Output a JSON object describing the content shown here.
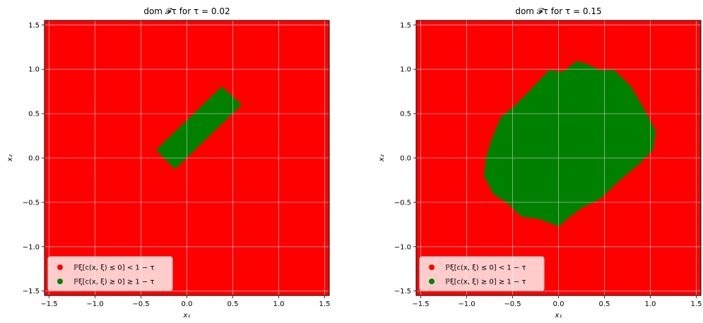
{
  "chart_data": [
    {
      "type": "scatter",
      "title": "dom 𝓕τ for τ = 0.02",
      "xlabel": "x₁",
      "ylabel": "x₂",
      "xlim": [
        -1.55,
        1.55
      ],
      "ylim": [
        -1.55,
        1.55
      ],
      "xticks": [
        -1.5,
        -1.0,
        -0.5,
        0.0,
        0.5,
        1.0,
        1.5
      ],
      "yticks": [
        -1.5,
        -1.0,
        -0.5,
        0.0,
        0.5,
        1.0,
        1.5
      ],
      "xtick_labels": [
        "−1.5",
        "−1.0",
        "−0.5",
        "0.0",
        "0.5",
        "1.0",
        "1.5"
      ],
      "ytick_labels": [
        "−1.5",
        "−1.0",
        "−0.5",
        "0.0",
        "0.5",
        "1.0",
        "1.5"
      ],
      "grid": true,
      "legend_position": "lower-left",
      "background_color": "#ff0000",
      "series": [
        {
          "name": "ℙξ[c(x, ξ) ≤ 0] < 1 − τ",
          "color": "#ff0000"
        },
        {
          "name": "ℙξ[c(x, ξ) ≥ 0] ≥ 1 − τ",
          "color": "#008000",
          "region": [
            [
              -0.32,
              0.09
            ],
            [
              0.38,
              0.79
            ],
            [
              0.58,
              0.6
            ],
            [
              -0.13,
              -0.11
            ]
          ]
        }
      ]
    },
    {
      "type": "scatter",
      "title": "dom 𝓕τ for τ = 0.15",
      "xlabel": "x₁",
      "ylabel": "x₂",
      "xlim": [
        -1.55,
        1.55
      ],
      "ylim": [
        -1.55,
        1.55
      ],
      "xticks": [
        -1.5,
        -1.0,
        -0.5,
        0.0,
        0.5,
        1.0,
        1.5
      ],
      "yticks": [
        -1.5,
        -1.0,
        -0.5,
        0.0,
        0.5,
        1.0,
        1.5
      ],
      "xtick_labels": [
        "−1.5",
        "−1.0",
        "−0.5",
        "0.0",
        "0.5",
        "1.0",
        "1.5"
      ],
      "ytick_labels": [
        "−1.5",
        "−1.0",
        "−0.5",
        "0.0",
        "0.5",
        "1.0",
        "1.5"
      ],
      "grid": true,
      "legend_position": "lower-left",
      "background_color": "#ff0000",
      "series": [
        {
          "name": "ℙξ[c(x, ξ) ≤ 0] < 1 − τ",
          "color": "#ff0000"
        },
        {
          "name": "ℙξ[c(x, ξ) ≥ 0] ≥ 1 − τ",
          "color": "#008000",
          "region": [
            [
              -0.1,
              0.98
            ],
            [
              0.05,
              0.96
            ],
            [
              0.2,
              1.08
            ],
            [
              0.3,
              1.05
            ],
            [
              0.45,
              0.98
            ],
            [
              0.6,
              0.98
            ],
            [
              0.78,
              0.8
            ],
            [
              0.92,
              0.55
            ],
            [
              1.05,
              0.3
            ],
            [
              1.02,
              0.1
            ],
            [
              0.88,
              -0.05
            ],
            [
              0.65,
              -0.25
            ],
            [
              0.45,
              -0.45
            ],
            [
              0.25,
              -0.55
            ],
            [
              0.12,
              -0.65
            ],
            [
              0.0,
              -0.76
            ],
            [
              -0.2,
              -0.68
            ],
            [
              -0.4,
              -0.65
            ],
            [
              -0.55,
              -0.5
            ],
            [
              -0.7,
              -0.4
            ],
            [
              -0.8,
              -0.2
            ],
            [
              -0.78,
              0.0
            ],
            [
              -0.72,
              0.2
            ],
            [
              -0.62,
              0.45
            ],
            [
              -0.45,
              0.6
            ],
            [
              -0.28,
              0.78
            ]
          ]
        }
      ]
    }
  ]
}
